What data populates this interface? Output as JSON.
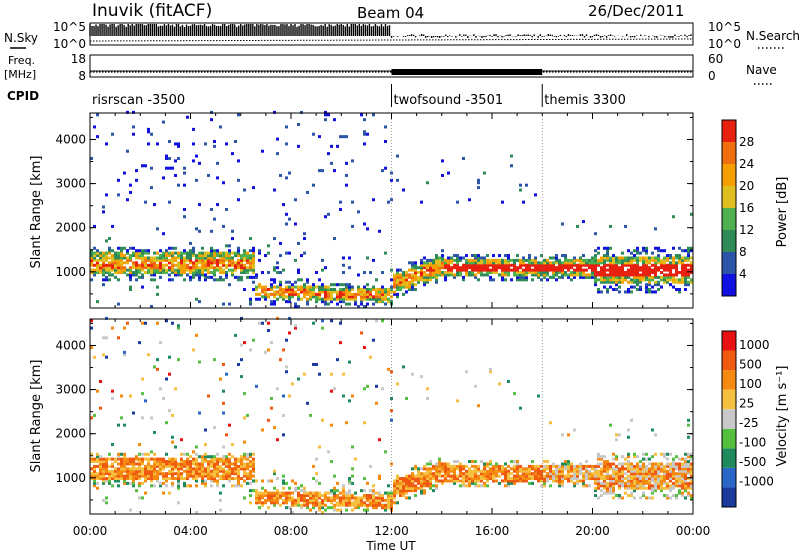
{
  "header": {
    "station": "Inuvik (fitACF)",
    "beam": "Beam 04",
    "date": "26/Dec/2011"
  },
  "left_labels": {
    "nsky": "N.Sky",
    "freq": "Freq.",
    "freq_unit": "[MHz]",
    "cpid": "CPID"
  },
  "right_labels": {
    "nsearch": "N.Search",
    "nave": "Nave"
  },
  "noise_panel": {
    "left_ticks": [
      "10^5",
      "10^0"
    ],
    "right_ticks": [
      "10^5",
      "10^0"
    ]
  },
  "freq_panel": {
    "left_ticks": [
      "18",
      "8"
    ],
    "right_ticks": [
      "60",
      "0"
    ]
  },
  "cpid": [
    {
      "label": "risrscan -3500",
      "start_hour": 0
    },
    {
      "label": "twofsound -3501",
      "start_hour": 12
    },
    {
      "label": "themis 3300",
      "start_hour": 18
    }
  ],
  "colors": {
    "power_scale": [
      "#1010e0",
      "#2c55a8",
      "#2e8b57",
      "#4fb04f",
      "#e0c020",
      "#f5a000",
      "#f07010",
      "#e82010"
    ],
    "velocity_scale": [
      "#1a3a9c",
      "#2a66c8",
      "#1f8a5c",
      "#55c040",
      "#c8c8c8",
      "#f5c040",
      "#f58a10",
      "#f05a10",
      "#e81010"
    ]
  },
  "chart_data": [
    {
      "type": "heatmap",
      "title": "",
      "xlabel": "Time UT",
      "ylabel": "Slant Range [km]",
      "x_ticks": [
        "00:00",
        "04:00",
        "08:00",
        "12:00",
        "16:00",
        "20:00",
        "00:00"
      ],
      "xlim_hours": [
        0,
        24
      ],
      "y_ticks": [
        "1000",
        "2000",
        "3000",
        "4000"
      ],
      "ylim": [
        180,
        4600
      ],
      "colorbar": {
        "label": "Power [dB]",
        "ticks": [
          "4",
          "8",
          "12",
          "16",
          "20",
          "24",
          "28"
        ],
        "range": [
          0,
          32
        ]
      }
    },
    {
      "type": "heatmap",
      "title": "",
      "xlabel": "Time UT",
      "ylabel": "Slant Range [km]",
      "x_ticks": [
        "00:00",
        "04:00",
        "08:00",
        "12:00",
        "16:00",
        "20:00",
        "00:00"
      ],
      "xlim_hours": [
        0,
        24
      ],
      "y_ticks": [
        "1000",
        "2000",
        "3000",
        "4000"
      ],
      "ylim": [
        180,
        4600
      ],
      "colorbar": {
        "label": "Velocity [m s⁻¹]",
        "ticks": [
          "1000",
          "500",
          "100",
          "25",
          "-25",
          "-100",
          "-500",
          "-1000"
        ]
      }
    }
  ]
}
